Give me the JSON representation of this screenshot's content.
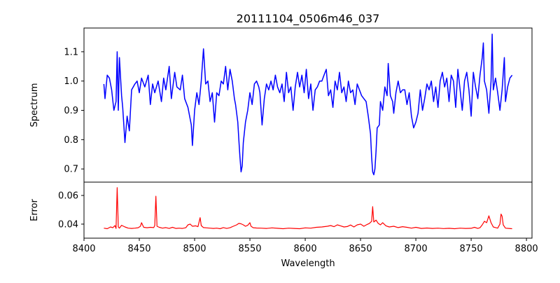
{
  "chart_data": [
    {
      "type": "line",
      "title": "20111104_0506m46_037",
      "xlabel": "",
      "ylabel": "Spectrum",
      "xlim": [
        8400,
        8805
      ],
      "ylim": [
        0.655,
        1.181
      ],
      "yticks": [
        0.7,
        0.8,
        0.9,
        1.0,
        1.1
      ],
      "ytick_labels": [
        "0.7",
        "0.8",
        "0.9",
        "1.0",
        "1.1"
      ],
      "color": "#0000ff",
      "series": [
        {
          "name": "Spectrum",
          "x": [
            8418,
            8419,
            8421,
            8423,
            8425,
            8427,
            8429,
            8430,
            8431,
            8432,
            8434,
            8435,
            8437,
            8439,
            8441,
            8443,
            8446,
            8448,
            8450,
            8452,
            8455,
            8458,
            8460,
            8462,
            8464,
            8467,
            8470,
            8472,
            8474,
            8477,
            8479,
            8482,
            8484,
            8487,
            8489,
            8491,
            8494,
            8497,
            8498,
            8500,
            8502,
            8504,
            8506,
            8508,
            8510,
            8512,
            8514,
            8516,
            8518,
            8520,
            8522,
            8524,
            8526,
            8528,
            8530,
            8532,
            8534,
            8536,
            8537,
            8539,
            8540,
            8541,
            8542,
            8543,
            8544,
            8546,
            8548,
            8550,
            8552,
            8554,
            8556,
            8558,
            8559,
            8561,
            8563,
            8565,
            8567,
            8569,
            8571,
            8573,
            8575,
            8577,
            8579,
            8581,
            8583,
            8585,
            8587,
            8589,
            8591,
            8593,
            8595,
            8597,
            8599,
            8601,
            8603,
            8605,
            8607,
            8609,
            8611,
            8613,
            8615,
            8617,
            8619,
            8621,
            8623,
            8625,
            8627,
            8629,
            8631,
            8633,
            8635,
            8637,
            8639,
            8641,
            8643,
            8645,
            8647,
            8649,
            8651,
            8653,
            8655,
            8657,
            8659,
            8660,
            8661,
            8662,
            8663,
            8664,
            8665,
            8667,
            8668,
            8670,
            8672,
            8674,
            8675,
            8677,
            8679,
            8680,
            8682,
            8684,
            8686,
            8688,
            8690,
            8692,
            8694,
            8696,
            8698,
            8700,
            8702,
            8704,
            8706,
            8708,
            8710,
            8712,
            8714,
            8716,
            8718,
            8720,
            8722,
            8724,
            8726,
            8728,
            8730,
            8732,
            8734,
            8736,
            8738,
            8740,
            8742,
            8744,
            8746,
            8748,
            8750,
            8752,
            8754,
            8756,
            8758,
            8760,
            8761,
            8762,
            8764,
            8766,
            8768,
            8769,
            8770,
            8772,
            8774,
            8776,
            8778,
            8780,
            8781,
            8783,
            8785,
            8787
          ],
          "y": [
            0.99,
            0.94,
            1.02,
            1.01,
            0.97,
            0.9,
            0.93,
            1.1,
            0.9,
            1.08,
            0.95,
            0.91,
            0.79,
            0.88,
            0.83,
            0.97,
            0.99,
            1.0,
            0.96,
            1.01,
            0.98,
            1.02,
            0.92,
            0.99,
            0.96,
            1.0,
            0.93,
            1.01,
            0.97,
            1.05,
            0.94,
            1.03,
            0.98,
            0.97,
            1.02,
            0.94,
            0.91,
            0.85,
            0.78,
            0.9,
            0.96,
            0.92,
            1.0,
            1.11,
            0.99,
            1.0,
            0.93,
            0.96,
            0.86,
            0.96,
            0.95,
            1.0,
            0.99,
            1.05,
            0.97,
            1.04,
            1.0,
            0.94,
            0.92,
            0.86,
            0.8,
            0.74,
            0.69,
            0.71,
            0.79,
            0.86,
            0.9,
            0.96,
            0.92,
            0.99,
            1.0,
            0.98,
            0.96,
            0.85,
            0.94,
            0.99,
            0.97,
            1.0,
            0.97,
            1.02,
            0.98,
            0.96,
            0.99,
            0.93,
            1.03,
            0.96,
            0.98,
            0.9,
            0.98,
            1.03,
            0.98,
            1.02,
            0.96,
            1.04,
            0.94,
            0.99,
            0.9,
            0.97,
            0.98,
            1.0,
            1.0,
            1.02,
            1.04,
            0.95,
            0.97,
            0.91,
            1.0,
            0.97,
            1.03,
            0.96,
            0.98,
            0.93,
            1.0,
            0.96,
            0.97,
            0.92,
            0.99,
            0.97,
            0.95,
            0.94,
            0.93,
            0.88,
            0.82,
            0.74,
            0.69,
            0.68,
            0.7,
            0.76,
            0.84,
            0.85,
            0.93,
            0.9,
            0.98,
            0.95,
            1.06,
            0.95,
            0.93,
            0.89,
            0.96,
            1.0,
            0.96,
            0.97,
            0.97,
            0.92,
            0.96,
            0.88,
            0.84,
            0.86,
            0.89,
            0.97,
            0.9,
            0.94,
            0.99,
            0.97,
            1.0,
            0.93,
            0.98,
            0.91,
            1.0,
            1.03,
            0.98,
            1.01,
            0.93,
            1.02,
            1.0,
            0.91,
            1.04,
            0.97,
            0.9,
            1.0,
            1.03,
            0.97,
            0.88,
            1.03,
            0.98,
            0.94,
            1.02,
            1.08,
            1.13,
            1.0,
            0.97,
            0.89,
            1.0,
            1.16,
            0.97,
            1.01,
            0.96,
            0.9,
            0.97,
            1.08,
            0.93,
            0.98,
            1.01,
            1.02
          ]
        }
      ]
    },
    {
      "type": "line",
      "title": "",
      "xlabel": "Wavelength",
      "ylabel": "Error",
      "xlim": [
        8400,
        8805
      ],
      "ylim": [
        0.0302,
        0.0693
      ],
      "xticks": [
        8400,
        8450,
        8500,
        8550,
        8600,
        8650,
        8700,
        8750,
        8800
      ],
      "xtick_labels": [
        "8400",
        "8450",
        "8500",
        "8550",
        "8600",
        "8650",
        "8700",
        "8750",
        "8800"
      ],
      "yticks": [
        0.04,
        0.06
      ],
      "ytick_labels": [
        "0.04",
        "0.06"
      ],
      "color": "#ff0000",
      "series": [
        {
          "name": "Error",
          "x": [
            8418,
            8421,
            8424,
            8426,
            8428,
            8429,
            8430,
            8431,
            8432,
            8434,
            8437,
            8440,
            8443,
            8446,
            8449,
            8451,
            8452,
            8454,
            8457,
            8460,
            8463,
            8464,
            8465,
            8466,
            8468,
            8471,
            8474,
            8477,
            8480,
            8483,
            8486,
            8489,
            8492,
            8494,
            8496,
            8498,
            8501,
            8503,
            8505,
            8506,
            8508,
            8511,
            8514,
            8517,
            8520,
            8523,
            8526,
            8529,
            8532,
            8535,
            8538,
            8540,
            8542,
            8544,
            8546,
            8548,
            8550,
            8551,
            8553,
            8556,
            8560,
            8565,
            8570,
            8575,
            8580,
            8585,
            8590,
            8595,
            8600,
            8605,
            8610,
            8615,
            8620,
            8623,
            8626,
            8629,
            8632,
            8635,
            8638,
            8641,
            8644,
            8647,
            8650,
            8653,
            8656,
            8658,
            8660,
            8661,
            8662,
            8664,
            8666,
            8668,
            8670,
            8673,
            8676,
            8680,
            8684,
            8688,
            8692,
            8696,
            8700,
            8705,
            8710,
            8715,
            8720,
            8725,
            8730,
            8735,
            8740,
            8745,
            8750,
            8753,
            8756,
            8758,
            8760,
            8762,
            8764,
            8766,
            8768,
            8770,
            8772,
            8774,
            8776,
            8777,
            8778,
            8779,
            8781,
            8784,
            8787
          ],
          "y": [
            0.0372,
            0.0368,
            0.038,
            0.0375,
            0.039,
            0.037,
            0.0655,
            0.038,
            0.0372,
            0.0392,
            0.038,
            0.0372,
            0.037,
            0.0372,
            0.0375,
            0.0385,
            0.041,
            0.0378,
            0.0375,
            0.0378,
            0.0376,
            0.039,
            0.0595,
            0.0385,
            0.0378,
            0.0372,
            0.0376,
            0.037,
            0.0378,
            0.037,
            0.0372,
            0.037,
            0.0375,
            0.0395,
            0.04,
            0.0385,
            0.0388,
            0.0382,
            0.0445,
            0.039,
            0.0376,
            0.0374,
            0.0372,
            0.037,
            0.0372,
            0.0368,
            0.0376,
            0.037,
            0.0375,
            0.0385,
            0.0395,
            0.0405,
            0.0402,
            0.0395,
            0.0385,
            0.0392,
            0.041,
            0.0385,
            0.0375,
            0.0373,
            0.0372,
            0.037,
            0.0374,
            0.0371,
            0.0368,
            0.0372,
            0.037,
            0.0368,
            0.0374,
            0.0372,
            0.0378,
            0.038,
            0.0385,
            0.039,
            0.0382,
            0.0395,
            0.0388,
            0.038,
            0.0383,
            0.0394,
            0.038,
            0.0395,
            0.04,
            0.0385,
            0.0398,
            0.0405,
            0.042,
            0.0522,
            0.0415,
            0.0428,
            0.0405,
            0.0395,
            0.041,
            0.0388,
            0.038,
            0.0385,
            0.0376,
            0.0382,
            0.0378,
            0.0372,
            0.0378,
            0.037,
            0.0373,
            0.037,
            0.0372,
            0.0369,
            0.0371,
            0.0368,
            0.0372,
            0.037,
            0.0371,
            0.0378,
            0.037,
            0.0375,
            0.0395,
            0.042,
            0.041,
            0.0458,
            0.041,
            0.038,
            0.0376,
            0.0372,
            0.04,
            0.047,
            0.0455,
            0.0395,
            0.0372,
            0.037,
            0.0368
          ]
        }
      ]
    }
  ]
}
